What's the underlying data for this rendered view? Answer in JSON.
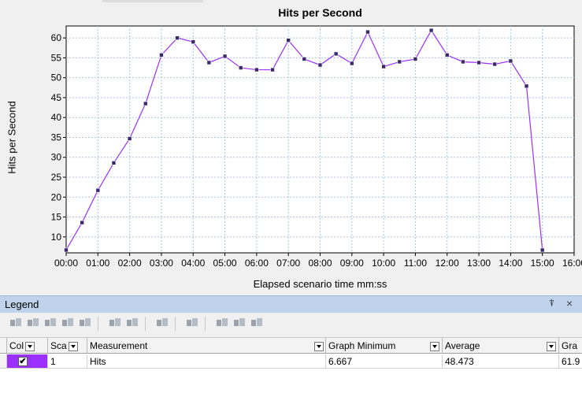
{
  "chart_panel": {
    "title": "Hits per Second",
    "y_axis_title": "Hits per Second",
    "x_axis_title": "Elapsed scenario time mm:ss"
  },
  "chart_data": {
    "type": "line",
    "title": "Hits per Second",
    "xlabel": "Elapsed scenario time mm:ss",
    "ylabel": "Hits per Second",
    "x_ticks": [
      "00:00",
      "01:00",
      "02:00",
      "03:00",
      "04:00",
      "05:00",
      "06:00",
      "07:00",
      "08:00",
      "09:00",
      "10:00",
      "11:00",
      "12:00",
      "13:00",
      "14:00",
      "15:00",
      "16:00"
    ],
    "y_ticks": [
      10,
      15,
      20,
      25,
      30,
      35,
      40,
      45,
      50,
      55,
      60
    ],
    "xlim": [
      0,
      16
    ],
    "ylim": [
      6,
      63
    ],
    "grid": true,
    "series": [
      {
        "color": "#9b30ff",
        "points": [
          [
            0.0,
            6.7
          ],
          [
            0.5,
            13.6
          ],
          [
            1.0,
            21.7
          ],
          [
            1.5,
            28.6
          ],
          [
            2.0,
            34.7
          ],
          [
            2.5,
            43.5
          ],
          [
            3.0,
            55.7
          ],
          [
            3.5,
            60.0
          ],
          [
            4.0,
            59.0
          ],
          [
            4.5,
            53.8
          ],
          [
            5.0,
            55.4
          ],
          [
            5.5,
            52.5
          ],
          [
            6.0,
            52.0
          ],
          [
            6.5,
            52.0
          ],
          [
            7.0,
            59.4
          ],
          [
            7.5,
            54.7
          ],
          [
            8.0,
            53.2
          ],
          [
            8.5,
            56.0
          ],
          [
            9.0,
            53.6
          ],
          [
            9.5,
            61.5
          ],
          [
            10.0,
            52.8
          ],
          [
            10.5,
            54.0
          ],
          [
            11.0,
            54.7
          ],
          [
            11.5,
            61.9
          ],
          [
            12.0,
            55.7
          ],
          [
            12.5,
            54.0
          ],
          [
            13.0,
            53.8
          ],
          [
            13.5,
            53.4
          ],
          [
            14.0,
            54.2
          ],
          [
            14.5,
            47.9
          ],
          [
            15.0,
            6.7
          ]
        ]
      }
    ]
  },
  "legend": {
    "title": "Legend",
    "pin_glyph": "⍒",
    "close_glyph": "×",
    "columns": [
      "Col",
      "Sca",
      "Measurement",
      "Graph Minimum",
      "Average",
      "Gra"
    ],
    "rows": [
      {
        "color": "#9b30ff",
        "checked": "✔",
        "scale": "1",
        "measurement": "Hits",
        "graph_minimum": "6.667",
        "average": "48.473",
        "graph_max": "61.9"
      }
    ]
  }
}
